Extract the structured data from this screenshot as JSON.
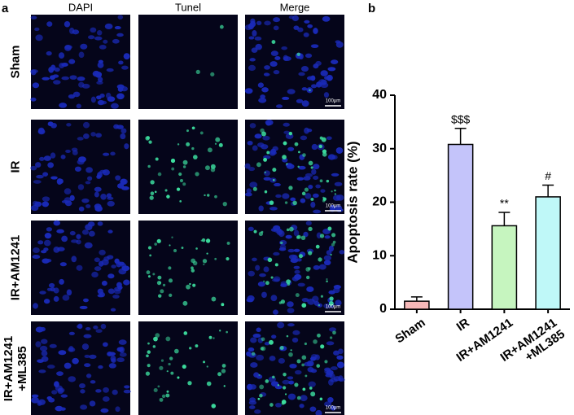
{
  "panels": {
    "a": "a",
    "b": "b"
  },
  "image_grid": {
    "columns": [
      "DAPI",
      "Tunel",
      "Merge"
    ],
    "rows": [
      "Sham",
      "IR",
      "IR+AM1241",
      "IR+AM1241\n+ML385"
    ],
    "scale_bar": "100μm"
  },
  "chart_data": {
    "type": "bar",
    "y_label": "Apoptosis rate (%)",
    "categories": [
      "Sham",
      "IR",
      "IR+AM1241",
      "IR+AM1241\n+ML385"
    ],
    "values": [
      1.5,
      30.8,
      15.6,
      21.0
    ],
    "errors": [
      0.8,
      3.0,
      2.5,
      2.2
    ],
    "annotations": [
      null,
      "$$$",
      "**",
      "#"
    ],
    "colors": [
      "#f6b8b8",
      "#c4c4fa",
      "#c6f5bf",
      "#bff8f8"
    ],
    "ylim": [
      0,
      40
    ],
    "yticks": [
      0,
      10,
      20,
      30,
      40
    ],
    "grid": false
  }
}
